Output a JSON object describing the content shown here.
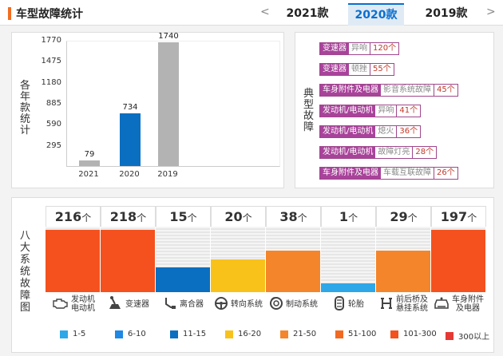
{
  "header": {
    "title": "车型故障统计",
    "prev_arrow": "<",
    "next_arrow": ">",
    "tabs": [
      {
        "label": "2021款",
        "active": false
      },
      {
        "label": "2020款",
        "active": true
      },
      {
        "label": "2019款",
        "active": false
      }
    ]
  },
  "year_chart": {
    "ylabel": "各年款统计",
    "chart_data": {
      "type": "bar",
      "categories": [
        "2021",
        "2020",
        "2019"
      ],
      "values": [
        79,
        734,
        1740
      ],
      "colors": [
        "#b3b3b3",
        "#0a6fc0",
        "#b3b3b3"
      ],
      "yticks": [
        "1770",
        "1475",
        "1180",
        "885",
        "590",
        "295"
      ],
      "ylim": [
        0,
        1770
      ]
    }
  },
  "typical_faults": {
    "label": "典型故障",
    "items": [
      {
        "category": "变速器",
        "desc": "异响",
        "count": "120个"
      },
      {
        "category": "变速器",
        "desc": "顿挫",
        "count": "55个"
      },
      {
        "category": "车身附件及电器",
        "desc": "影音系统故障",
        "count": "45个"
      },
      {
        "category": "发动机/电动机",
        "desc": "异响",
        "count": "41个"
      },
      {
        "category": "发动机/电动机",
        "desc": "熄火",
        "count": "36个"
      },
      {
        "category": "发动机/电动机",
        "desc": "故障灯亮",
        "count": "28个"
      },
      {
        "category": "车身附件及电器",
        "desc": "车载互联故障",
        "count": "26个"
      }
    ]
  },
  "eight_systems": {
    "label": "八大系统故障图",
    "unit": "个",
    "columns": [
      {
        "value": "216",
        "name": "发动机\n电动机",
        "icon": "engine-icon",
        "level": 0.95,
        "color": "#f4511e"
      },
      {
        "value": "218",
        "name": "变速器",
        "icon": "gear-shift-icon",
        "level": 0.95,
        "color": "#f4511e"
      },
      {
        "value": "15",
        "name": "离合器",
        "icon": "clutch-icon",
        "level": 0.38,
        "color": "#0a6fc0"
      },
      {
        "value": "20",
        "name": "转向系统",
        "icon": "steering-wheel-icon",
        "level": 0.5,
        "color": "#f9c21b"
      },
      {
        "value": "38",
        "name": "制动系统",
        "icon": "brake-icon",
        "level": 0.63,
        "color": "#f5852a"
      },
      {
        "value": "1",
        "name": "轮胎",
        "icon": "tire-icon",
        "level": 0.13,
        "color": "#2ea7e8"
      },
      {
        "value": "29",
        "name": "前后桥及\n悬挂系统",
        "icon": "suspension-icon",
        "level": 0.63,
        "color": "#f5852a"
      },
      {
        "value": "197",
        "name": "车身附件\n及电器",
        "icon": "car-body-icon",
        "level": 0.95,
        "color": "#f4511e"
      }
    ],
    "legend": [
      {
        "label": "1-5",
        "color": "#2ea7e8"
      },
      {
        "label": "6-10",
        "color": "#1e88e5"
      },
      {
        "label": "11-15",
        "color": "#0a6fc0"
      },
      {
        "label": "16-20",
        "color": "#f9c21b"
      },
      {
        "label": "21-50",
        "color": "#f5852a"
      },
      {
        "label": "51-100",
        "color": "#f26a21"
      },
      {
        "label": "101-300",
        "color": "#f4511e"
      },
      {
        "label": "300以上",
        "color": "#e53935"
      }
    ]
  }
}
